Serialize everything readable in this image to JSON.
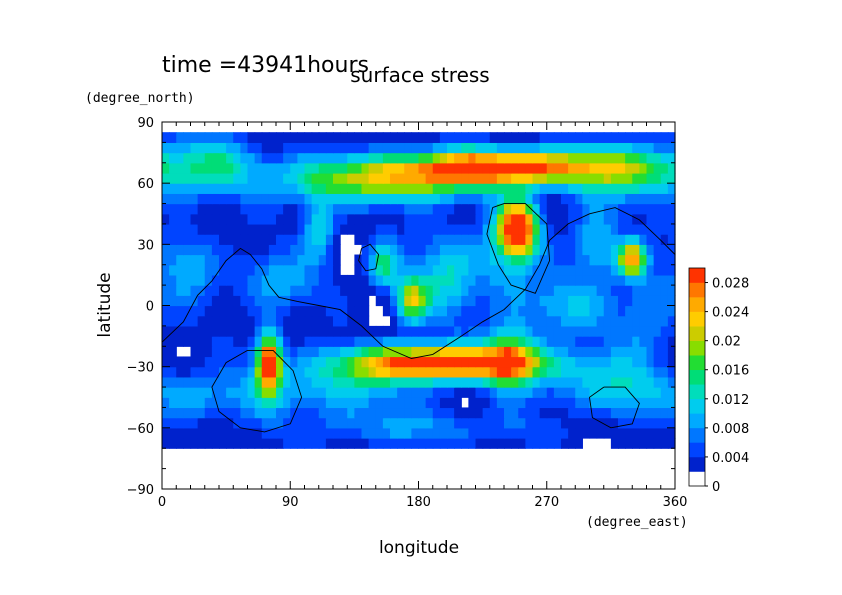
{
  "chart_data": {
    "type": "heatmap",
    "title": "surface stress",
    "time_label": "time =43941hours",
    "xlabel": "longitude",
    "ylabel": "latitude",
    "x_unit": "(degree_east)",
    "y_unit": "(degree_north)",
    "xlim": [
      0,
      360
    ],
    "ylim": [
      -90,
      90
    ],
    "x_ticks": [
      0,
      90,
      180,
      270,
      360
    ],
    "x_tick_labels": [
      "0",
      "90",
      "180",
      "270",
      "360"
    ],
    "y_ticks": [
      -90,
      -60,
      -30,
      0,
      30,
      60,
      90
    ],
    "y_tick_labels": [
      "−90",
      "−60",
      "−30",
      "0",
      "30",
      "60",
      "90"
    ],
    "colorbar": {
      "range": [
        0,
        0.03
      ],
      "levels": [
        0,
        0.002,
        0.004,
        0.006,
        0.008,
        0.01,
        0.012,
        0.014,
        0.016,
        0.018,
        0.02,
        0.022,
        0.024,
        0.026,
        0.028,
        0.03
      ],
      "colors": [
        "#ffffff",
        "#0022cc",
        "#0044ff",
        "#0077ff",
        "#00aaff",
        "#00ccee",
        "#00ddbb",
        "#00dd77",
        "#22dd33",
        "#88dd00",
        "#cccc00",
        "#ffcc00",
        "#ffaa00",
        "#ff7700",
        "#ff3300"
      ],
      "tick_values": [
        0,
        0.004,
        0.008,
        0.012,
        0.016,
        0.02,
        0.024,
        0.028
      ],
      "tick_labels": [
        "0",
        "0.004",
        "0.008",
        "0.012",
        "0.016",
        "0.02",
        "0.024",
        "0.028"
      ]
    },
    "features": [
      {
        "lon": 235,
        "lat": 68,
        "amp": 0.028,
        "slon": 55,
        "slat": 6
      },
      {
        "lon": 170,
        "lat": 60,
        "amp": 0.014,
        "slon": 40,
        "slat": 7
      },
      {
        "lon": 30,
        "lat": 68,
        "amp": 0.011,
        "slon": 30,
        "slat": 10
      },
      {
        "lon": 320,
        "lat": 65,
        "amp": 0.01,
        "slon": 30,
        "slat": 10
      },
      {
        "lon": 110,
        "lat": 62,
        "amp": 0.008,
        "slon": 25,
        "slat": 8
      },
      {
        "lon": 250,
        "lat": 38,
        "amp": 0.03,
        "slon": 9,
        "slat": 9
      },
      {
        "lon": 240,
        "lat": 25,
        "amp": 0.008,
        "slon": 15,
        "slat": 15
      },
      {
        "lon": 330,
        "lat": 23,
        "amp": 0.022,
        "slon": 7,
        "slat": 6
      },
      {
        "lon": 305,
        "lat": 30,
        "amp": 0.009,
        "slon": 12,
        "slat": 12
      },
      {
        "lon": 175,
        "lat": 3,
        "amp": 0.018,
        "slon": 8,
        "slat": 8
      },
      {
        "lon": 155,
        "lat": 20,
        "amp": 0.012,
        "slon": 8,
        "slat": 8
      },
      {
        "lon": 200,
        "lat": 15,
        "amp": 0.009,
        "slon": 15,
        "slat": 15
      },
      {
        "lon": 110,
        "lat": 38,
        "amp": 0.01,
        "slon": 8,
        "slat": 10
      },
      {
        "lon": 80,
        "lat": 12,
        "amp": 0.007,
        "slon": 20,
        "slat": 10
      },
      {
        "lon": 20,
        "lat": 20,
        "amp": 0.007,
        "slon": 15,
        "slat": 12
      },
      {
        "lon": 280,
        "lat": 0,
        "amp": 0.007,
        "slon": 25,
        "slat": 10
      },
      {
        "lon": 340,
        "lat": -5,
        "amp": 0.006,
        "slon": 15,
        "slat": 15
      },
      {
        "lon": 75,
        "lat": -28,
        "amp": 0.03,
        "slon": 6,
        "slat": 10
      },
      {
        "lon": 195,
        "lat": -28,
        "amp": 0.03,
        "slon": 45,
        "slat": 6
      },
      {
        "lon": 245,
        "lat": -25,
        "amp": 0.015,
        "slon": 12,
        "slat": 10
      },
      {
        "lon": 120,
        "lat": -40,
        "amp": 0.008,
        "slon": 40,
        "slat": 10
      },
      {
        "lon": 300,
        "lat": -35,
        "amp": 0.007,
        "slon": 35,
        "slat": 10
      },
      {
        "lon": 30,
        "lat": -45,
        "amp": 0.006,
        "slon": 25,
        "slat": 8
      },
      {
        "lon": 180,
        "lat": -60,
        "amp": 0.005,
        "slon": 60,
        "slat": 6
      },
      {
        "lon": 330,
        "lat": -45,
        "amp": 0.005,
        "slon": 20,
        "slat": 8
      }
    ],
    "contours": [
      [
        [
          0,
          -18
        ],
        [
          15,
          -8
        ],
        [
          25,
          5
        ],
        [
          35,
          12
        ],
        [
          45,
          22
        ],
        [
          55,
          28
        ],
        [
          62,
          25
        ],
        [
          70,
          18
        ],
        [
          75,
          10
        ],
        [
          82,
          4
        ],
        [
          95,
          2
        ],
        [
          110,
          0
        ],
        [
          125,
          -2
        ],
        [
          140,
          -10
        ],
        [
          155,
          -20
        ],
        [
          175,
          -26
        ],
        [
          190,
          -24
        ],
        [
          210,
          -15
        ],
        [
          225,
          -8
        ],
        [
          240,
          -2
        ],
        [
          255,
          8
        ],
        [
          265,
          20
        ],
        [
          272,
          32
        ],
        [
          285,
          40
        ],
        [
          300,
          45
        ],
        [
          318,
          48
        ],
        [
          335,
          42
        ],
        [
          350,
          32
        ],
        [
          360,
          25
        ]
      ],
      [
        [
          60,
          -22
        ],
        [
          45,
          -28
        ],
        [
          35,
          -40
        ],
        [
          40,
          -52
        ],
        [
          55,
          -60
        ],
        [
          72,
          -62
        ],
        [
          90,
          -58
        ],
        [
          98,
          -45
        ],
        [
          92,
          -32
        ],
        [
          78,
          -22
        ],
        [
          60,
          -22
        ]
      ],
      [
        [
          310,
          -40
        ],
        [
          300,
          -45
        ],
        [
          302,
          -55
        ],
        [
          315,
          -60
        ],
        [
          330,
          -58
        ],
        [
          335,
          -48
        ],
        [
          325,
          -40
        ],
        [
          310,
          -40
        ]
      ],
      [
        [
          140,
          28
        ],
        [
          146,
          30
        ],
        [
          152,
          25
        ],
        [
          150,
          18
        ],
        [
          143,
          17
        ],
        [
          138,
          22
        ],
        [
          140,
          28
        ]
      ],
      [
        [
          232,
          48
        ],
        [
          228,
          35
        ],
        [
          236,
          20
        ],
        [
          245,
          10
        ],
        [
          262,
          6
        ],
        [
          272,
          22
        ],
        [
          270,
          40
        ],
        [
          255,
          50
        ],
        [
          240,
          50
        ],
        [
          232,
          48
        ]
      ]
    ]
  }
}
